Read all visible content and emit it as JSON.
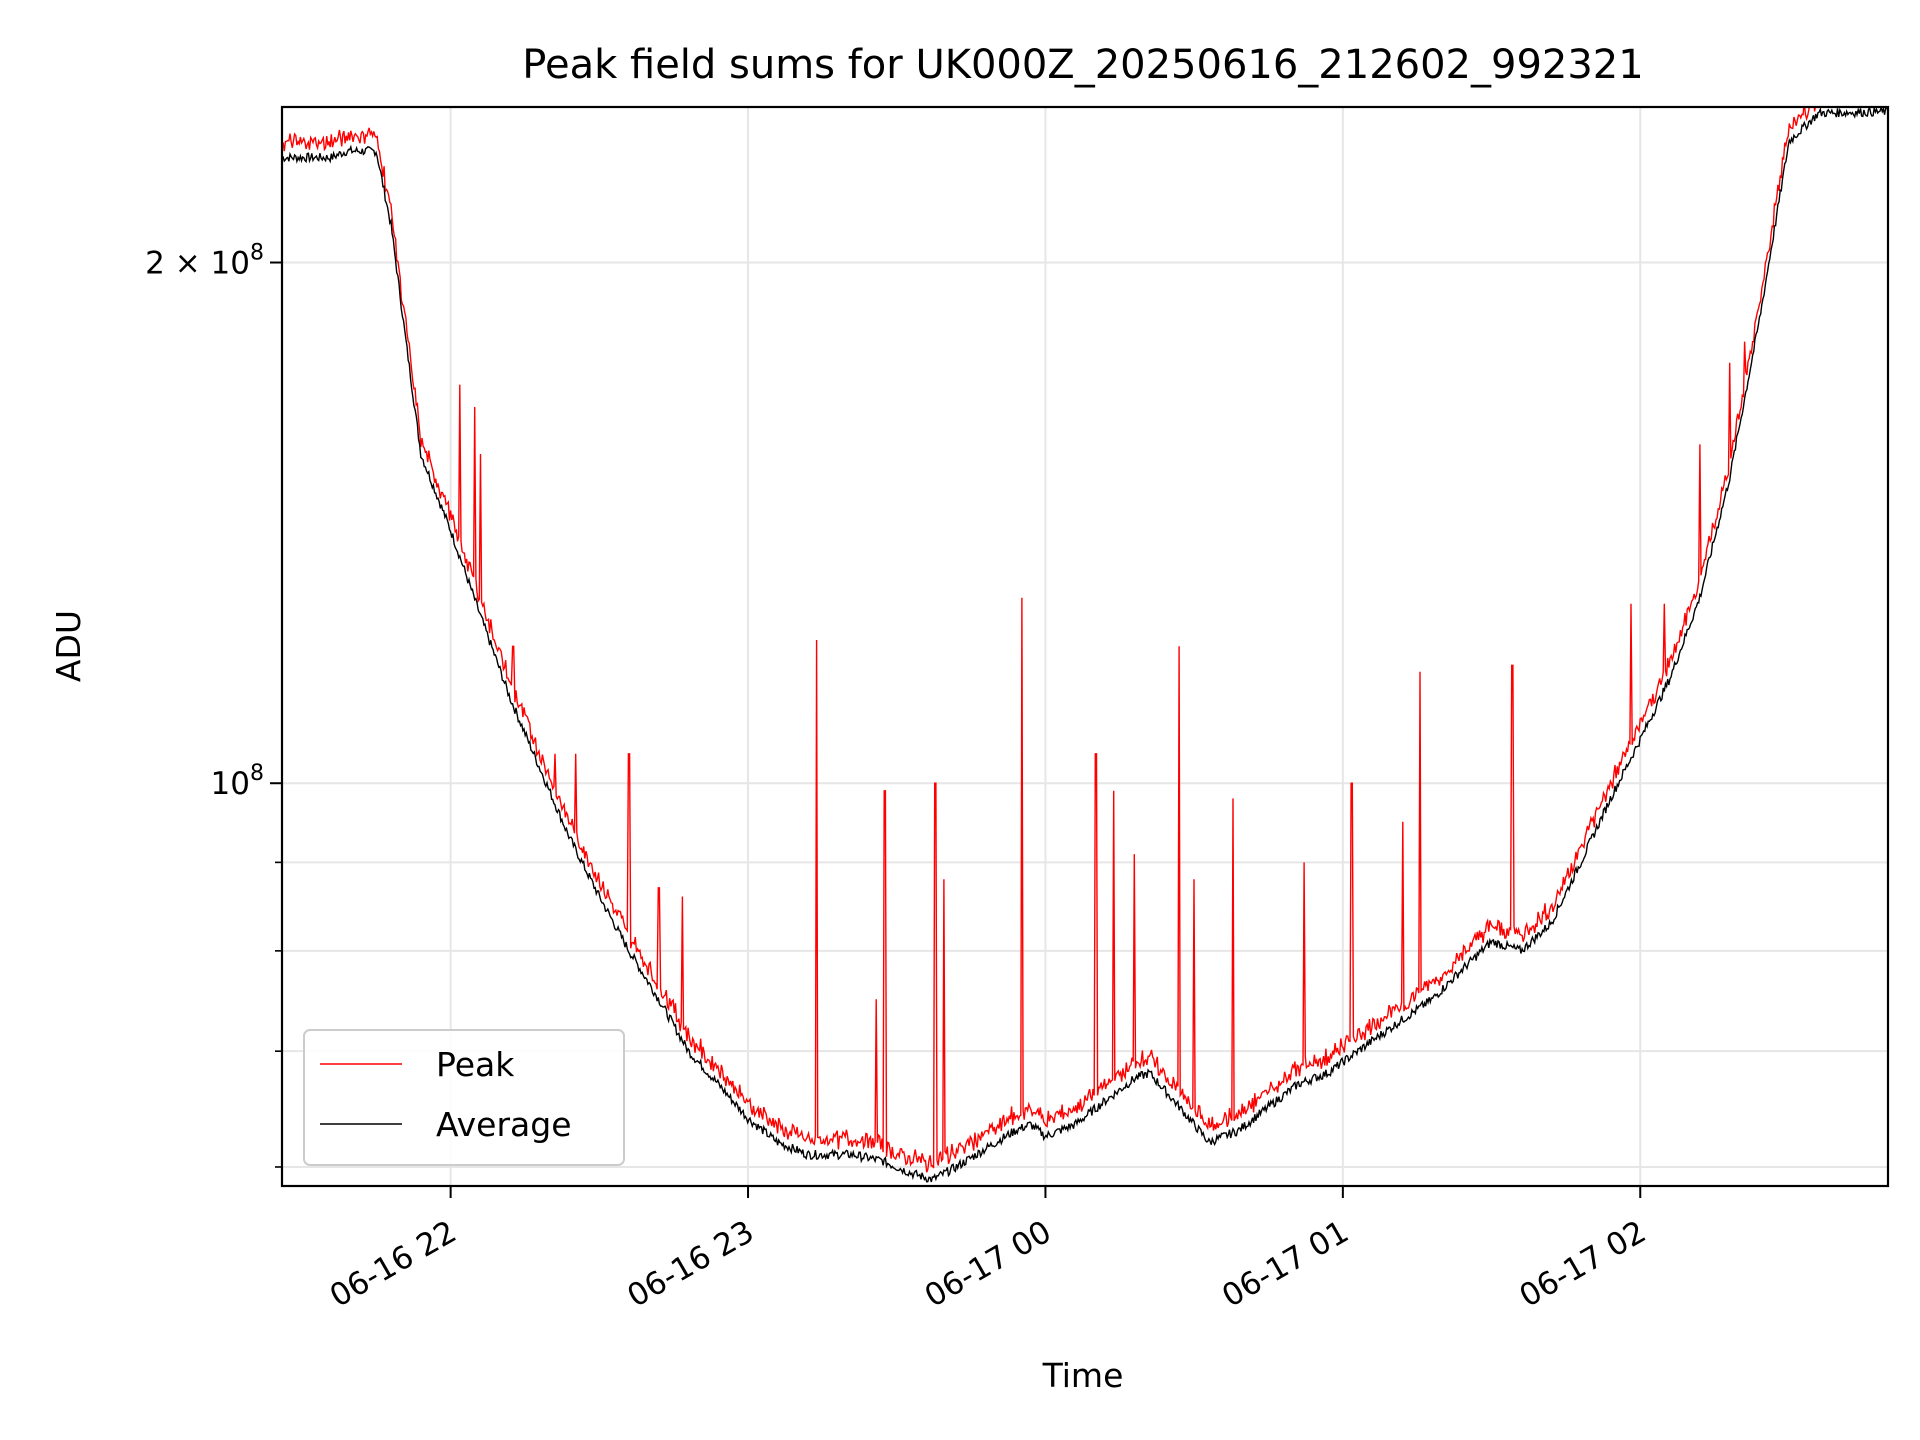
{
  "chart_data": {
    "type": "line",
    "title": "Peak field sums for UK000Z_20250616_212602_992321",
    "xlabel": "Time",
    "ylabel": "ADU",
    "x_ticks": [
      "06-16 22",
      "06-16 23",
      "06-17 00",
      "06-17 01",
      "06-17 02"
    ],
    "x_tick_hours": [
      22,
      23,
      24,
      25,
      26
    ],
    "xlim_hours": [
      21.433,
      26.833
    ],
    "y_scale": "log",
    "ylim": [
      58500000,
      246000000
    ],
    "y_tick_labels": [
      {
        "base": "2",
        "exp": "8",
        "value": 200000000
      },
      {
        "base": "",
        "exp": "8",
        "value": 100000000
      }
    ],
    "y_minor_ticks": [
      60000000,
      70000000,
      80000000,
      90000000
    ],
    "grid": true,
    "legend": {
      "placement": "lower-left",
      "entries": [
        {
          "label": "Peak",
          "color": "#ff0000"
        },
        {
          "label": "Average",
          "color": "#000000"
        }
      ]
    },
    "series": [
      {
        "name": "Average",
        "color": "#000000",
        "points": [
          [
            21.43,
            230000000
          ],
          [
            21.6,
            230000000
          ],
          [
            21.65,
            232000000
          ],
          [
            21.75,
            232000000
          ],
          [
            21.8,
            210000000
          ],
          [
            21.85,
            180000000
          ],
          [
            21.9,
            155000000
          ],
          [
            22.0,
            140000000
          ],
          [
            22.1,
            125000000
          ],
          [
            22.2,
            112000000
          ],
          [
            22.3,
            102000000
          ],
          [
            22.4,
            93000000
          ],
          [
            22.5,
            86000000
          ],
          [
            22.6,
            80000000
          ],
          [
            22.7,
            75000000
          ],
          [
            22.8,
            70000000
          ],
          [
            22.9,
            67000000
          ],
          [
            23.0,
            64000000
          ],
          [
            23.1,
            62000000
          ],
          [
            23.2,
            61000000
          ],
          [
            23.35,
            61000000
          ],
          [
            23.45,
            60500000
          ],
          [
            23.55,
            59500000
          ],
          [
            23.62,
            59000000
          ],
          [
            23.7,
            60000000
          ],
          [
            23.8,
            61500000
          ],
          [
            23.9,
            63000000
          ],
          [
            23.95,
            63500000
          ],
          [
            24.0,
            62500000
          ],
          [
            24.1,
            63500000
          ],
          [
            24.2,
            65500000
          ],
          [
            24.3,
            67500000
          ],
          [
            24.35,
            68000000
          ],
          [
            24.45,
            65000000
          ],
          [
            24.55,
            62000000
          ],
          [
            24.65,
            63000000
          ],
          [
            24.75,
            65000000
          ],
          [
            24.85,
            67000000
          ],
          [
            24.95,
            68000000
          ],
          [
            25.0,
            69000000
          ],
          [
            25.1,
            71000000
          ],
          [
            25.2,
            73000000
          ],
          [
            25.3,
            75000000
          ],
          [
            25.4,
            78000000
          ],
          [
            25.5,
            81000000
          ],
          [
            25.6,
            80000000
          ],
          [
            25.7,
            83000000
          ],
          [
            25.8,
            90000000
          ],
          [
            25.9,
            98000000
          ],
          [
            26.0,
            106000000
          ],
          [
            26.1,
            115000000
          ],
          [
            26.2,
            128000000
          ],
          [
            26.3,
            150000000
          ],
          [
            26.4,
            185000000
          ],
          [
            26.5,
            235000000
          ],
          [
            26.6,
            244000000
          ],
          [
            26.83,
            244500000
          ]
        ]
      },
      {
        "name": "Peak",
        "color": "#ff0000",
        "spikes": [
          [
            22.03,
            170000000
          ],
          [
            22.08,
            165000000
          ],
          [
            22.1,
            155000000
          ],
          [
            22.21,
            120000000
          ],
          [
            22.35,
            104000000
          ],
          [
            22.42,
            104000000
          ],
          [
            22.6,
            104000000
          ],
          [
            22.7,
            87000000
          ],
          [
            22.78,
            86000000
          ],
          [
            23.23,
            121000000
          ],
          [
            23.43,
            75000000
          ],
          [
            23.46,
            99000000
          ],
          [
            23.63,
            100000000
          ],
          [
            23.66,
            88000000
          ],
          [
            23.92,
            128000000
          ],
          [
            24.17,
            104000000
          ],
          [
            24.23,
            99000000
          ],
          [
            24.3,
            91000000
          ],
          [
            24.45,
            120000000
          ],
          [
            24.5,
            88000000
          ],
          [
            24.63,
            98000000
          ],
          [
            24.87,
            90000000
          ],
          [
            25.03,
            100000000
          ],
          [
            25.2,
            95000000
          ],
          [
            25.26,
            116000000
          ],
          [
            25.57,
            117000000
          ],
          [
            25.97,
            127000000
          ],
          [
            26.08,
            127000000
          ],
          [
            26.2,
            157000000
          ],
          [
            26.3,
            175000000
          ],
          [
            26.35,
            180000000
          ],
          [
            26.38,
            180000000
          ]
        ]
      }
    ]
  }
}
